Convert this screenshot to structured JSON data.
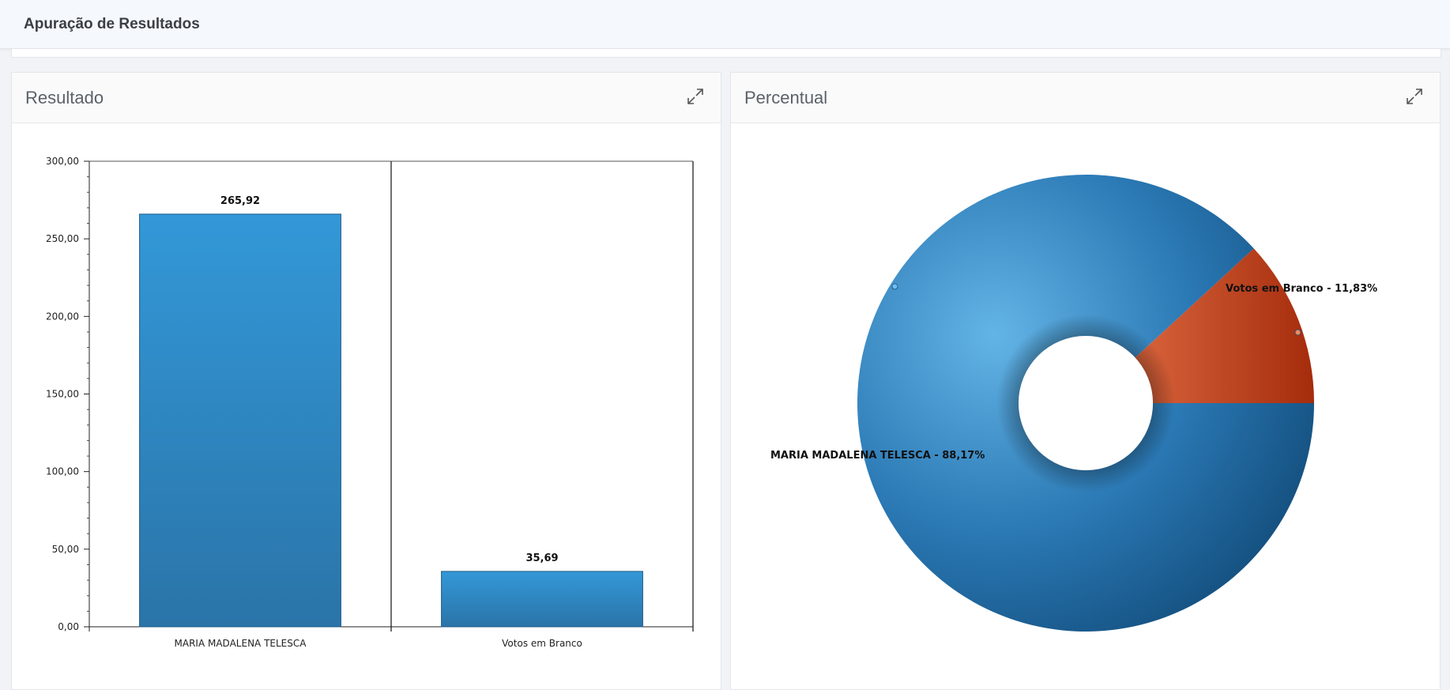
{
  "header": {
    "title": "Apuração de Resultados"
  },
  "panels": {
    "left": {
      "title": "Resultado",
      "expand_icon": "expand-icon"
    },
    "right": {
      "title": "Percentual",
      "expand_icon": "expand-icon"
    }
  },
  "colors": {
    "bar": "#2e8ccd",
    "pie_blue": "#2a78b4",
    "pie_orange": "#c8502a"
  },
  "chart_data": [
    {
      "type": "bar",
      "categories": [
        "MARIA MADALENA TELESCA",
        "Votos em Branco"
      ],
      "values": [
        265.92,
        35.69
      ],
      "value_labels": [
        "265,92",
        "35,69"
      ],
      "y_ticks": [
        "0,00",
        "50,00",
        "100,00",
        "150,00",
        "200,00",
        "250,00",
        "300,00"
      ],
      "ylim": [
        0,
        300
      ],
      "grid": false
    },
    {
      "type": "pie",
      "style": "donut",
      "slices": [
        {
          "name": "MARIA MADALENA TELESCA",
          "value": 88.17,
          "label": "MARIA MADALENA TELESCA - 88,17%"
        },
        {
          "name": "Votos em Branco",
          "value": 11.83,
          "label": "Votos em Branco - 11,83%"
        }
      ]
    }
  ]
}
